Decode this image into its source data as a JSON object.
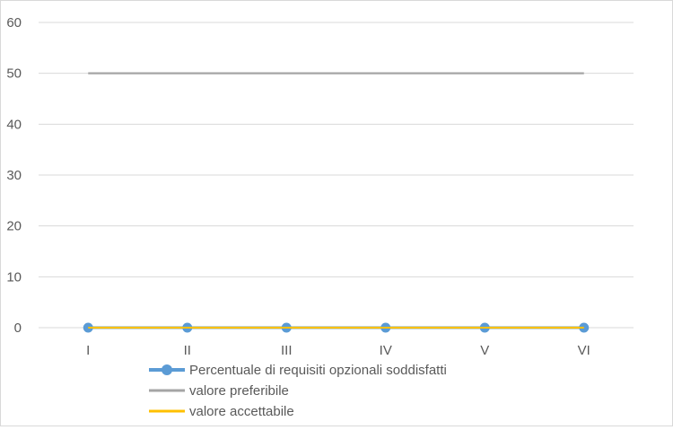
{
  "chart_data": {
    "type": "line",
    "categories": [
      "I",
      "II",
      "III",
      "IV",
      "V",
      "VI"
    ],
    "ylim": [
      0,
      60
    ],
    "yticks": [
      0,
      10,
      20,
      30,
      40,
      50,
      60
    ],
    "grid": true,
    "legend_position": "bottom",
    "series": [
      {
        "name": "Percentuale di requisiti opzionali soddisfatti",
        "values": [
          0,
          0,
          0,
          0,
          0,
          0
        ],
        "color": "#5b9bd5",
        "markers": true
      },
      {
        "name": "valore preferibile",
        "values": [
          50,
          50,
          50,
          50,
          50,
          50
        ],
        "color": "#a5a5a5",
        "markers": false
      },
      {
        "name": "valore accettabile",
        "values": [
          0,
          0,
          0,
          0,
          0,
          0
        ],
        "color": "#ffc000",
        "markers": false
      }
    ]
  }
}
